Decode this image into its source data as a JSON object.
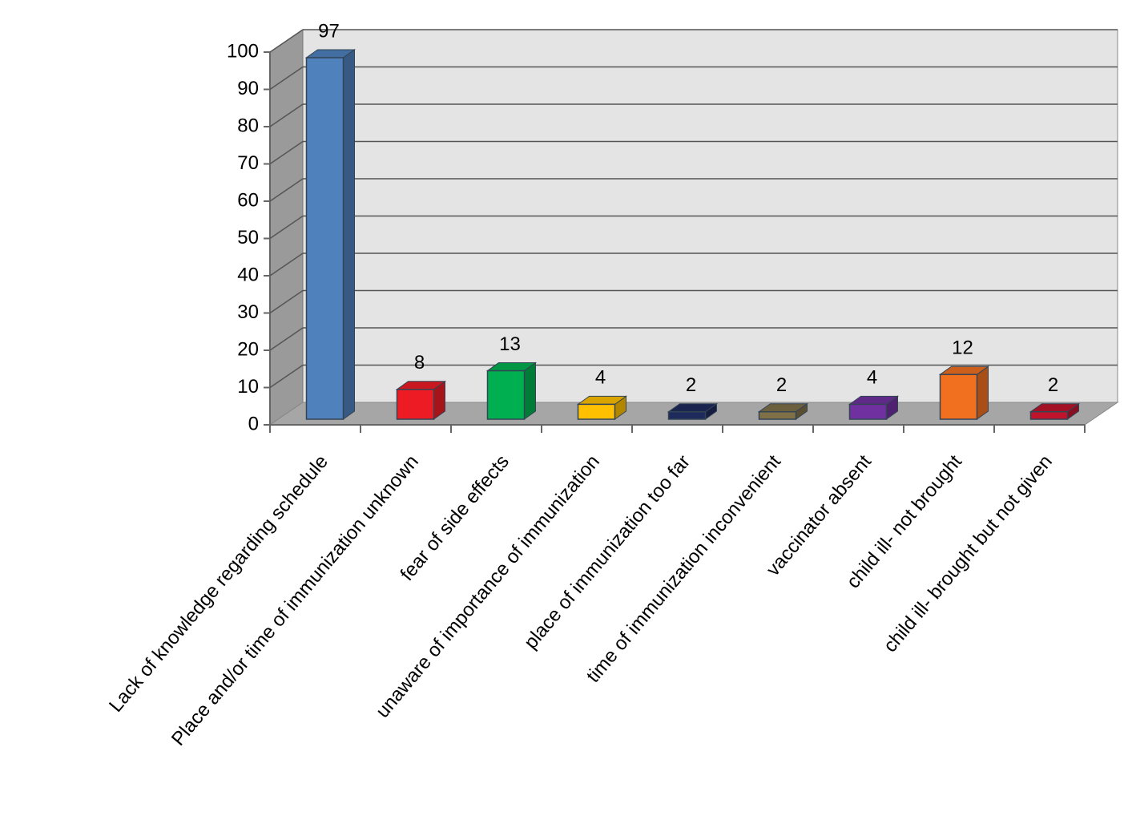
{
  "chart_data": {
    "type": "bar3d",
    "categories": [
      "Lack of knowledge regarding schedule",
      "Place and/or time of immunization unknown",
      "fear of side effects",
      "unaware of importance of immunization",
      "place of immunization too far",
      "time of immunization inconvenient",
      "vaccinator absent",
      "child ill- not brought",
      "child ill- brought but not given"
    ],
    "values": [
      97,
      8,
      13,
      4,
      2,
      2,
      4,
      12,
      2
    ],
    "colors": [
      "#4f81bd",
      "#ed1c24",
      "#00b050",
      "#ffc000",
      "#1f2a5c",
      "#7f7048",
      "#7030a0",
      "#f07020",
      "#c0142c"
    ],
    "ylim": [
      0,
      100
    ],
    "yticks": [
      0,
      10,
      20,
      30,
      40,
      50,
      60,
      70,
      80,
      90,
      100
    ],
    "grid": true
  }
}
